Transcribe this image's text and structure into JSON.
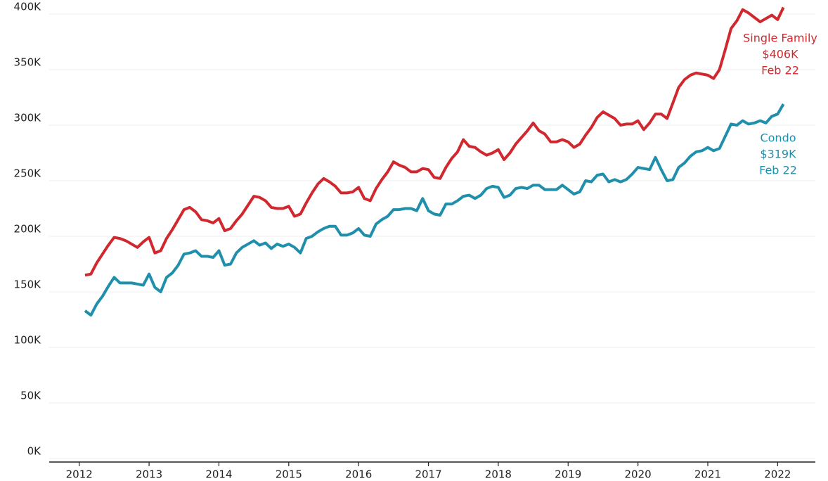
{
  "chart_data": {
    "type": "line",
    "x": [
      2012.083,
      2012.167,
      2012.25,
      2012.333,
      2012.417,
      2012.5,
      2012.583,
      2012.667,
      2012.75,
      2012.833,
      2012.917,
      2013,
      2013.083,
      2013.167,
      2013.25,
      2013.333,
      2013.417,
      2013.5,
      2013.583,
      2013.667,
      2013.75,
      2013.833,
      2013.917,
      2014,
      2014.083,
      2014.167,
      2014.25,
      2014.333,
      2014.417,
      2014.5,
      2014.583,
      2014.667,
      2014.75,
      2014.833,
      2014.917,
      2015,
      2015.083,
      2015.167,
      2015.25,
      2015.333,
      2015.417,
      2015.5,
      2015.583,
      2015.667,
      2015.75,
      2015.833,
      2015.917,
      2016,
      2016.083,
      2016.167,
      2016.25,
      2016.333,
      2016.417,
      2016.5,
      2016.583,
      2016.667,
      2016.75,
      2016.833,
      2016.917,
      2017,
      2017.083,
      2017.167,
      2017.25,
      2017.333,
      2017.417,
      2017.5,
      2017.583,
      2017.667,
      2017.75,
      2017.833,
      2017.917,
      2018,
      2018.083,
      2018.167,
      2018.25,
      2018.333,
      2018.417,
      2018.5,
      2018.583,
      2018.667,
      2018.75,
      2018.833,
      2018.917,
      2019,
      2019.083,
      2019.167,
      2019.25,
      2019.333,
      2019.417,
      2019.5,
      2019.583,
      2019.667,
      2019.75,
      2019.833,
      2019.917,
      2020,
      2020.083,
      2020.167,
      2020.25,
      2020.333,
      2020.417,
      2020.5,
      2020.583,
      2020.667,
      2020.75,
      2020.833,
      2020.917,
      2021,
      2021.083,
      2021.167,
      2021.25,
      2021.333,
      2021.417,
      2021.5,
      2021.583,
      2021.667,
      2021.75,
      2021.833,
      2021.917,
      2022,
      2022.083
    ],
    "series": [
      {
        "name": "Single Family",
        "color": "#d0282e",
        "value_label": "$406K",
        "date_label": "Feb 22",
        "values": [
          165,
          166,
          176,
          184,
          192,
          199,
          198,
          196,
          193,
          190,
          195,
          199,
          185,
          187,
          198,
          206,
          215,
          224,
          226,
          222,
          215,
          214,
          212,
          216,
          205,
          207,
          214,
          220,
          228,
          236,
          235,
          232,
          226,
          225,
          225,
          227,
          218,
          220,
          230,
          239,
          247,
          252,
          249,
          245,
          239,
          239,
          240,
          244,
          234,
          232,
          243,
          251,
          258,
          267,
          264,
          262,
          258,
          258,
          261,
          260,
          253,
          252,
          262,
          270,
          276,
          287,
          281,
          280,
          276,
          273,
          275,
          278,
          269,
          275,
          283,
          289,
          295,
          302,
          295,
          292,
          285,
          285,
          287,
          285,
          280,
          283,
          291,
          298,
          307,
          312,
          309,
          306,
          300,
          301,
          301,
          304,
          296,
          302,
          310,
          310,
          306,
          320,
          334,
          341,
          345,
          347,
          346,
          345,
          342,
          350,
          368,
          387,
          394,
          404,
          401,
          397,
          393,
          396,
          399,
          395,
          406
        ]
      },
      {
        "name": "Condo",
        "color": "#1f8fab",
        "value_label": "$319K",
        "date_label": "Feb 22",
        "values": [
          133,
          129,
          139,
          146,
          155,
          163,
          158,
          158,
          158,
          157,
          156,
          166,
          154,
          150,
          163,
          167,
          174,
          184,
          185,
          187,
          182,
          182,
          181,
          187,
          174,
          175,
          185,
          190,
          193,
          196,
          192,
          194,
          189,
          193,
          191,
          193,
          190,
          185,
          198,
          200,
          204,
          207,
          209,
          209,
          201,
          201,
          203,
          207,
          201,
          200,
          211,
          215,
          218,
          224,
          224,
          225,
          225,
          223,
          234,
          223,
          220,
          219,
          229,
          229,
          232,
          236,
          237,
          234,
          237,
          243,
          245,
          244,
          235,
          237,
          243,
          244,
          243,
          246,
          246,
          242,
          242,
          242,
          246,
          242,
          238,
          240,
          250,
          249,
          255,
          256,
          249,
          251,
          249,
          251,
          256,
          262,
          261,
          260,
          271,
          260,
          250,
          251,
          262,
          266,
          272,
          276,
          277,
          280,
          277,
          279,
          290,
          301,
          300,
          304,
          301,
          302,
          304,
          302,
          308,
          310,
          319
        ]
      }
    ],
    "xlim": [
      2011.57,
      2022.54
    ],
    "xticks": [
      2012,
      2013,
      2014,
      2015,
      2016,
      2017,
      2018,
      2019,
      2020,
      2021,
      2022
    ],
    "ylim": [
      0,
      410
    ],
    "yticks": [
      {
        "value": 0,
        "label": "0K"
      },
      {
        "value": 50,
        "label": "50K"
      },
      {
        "value": 100,
        "label": "100K"
      },
      {
        "value": 150,
        "label": "150K"
      },
      {
        "value": 200,
        "label": "200K"
      },
      {
        "value": 250,
        "label": "250K"
      },
      {
        "value": 300,
        "label": "300K"
      },
      {
        "value": 350,
        "label": "350K"
      },
      {
        "value": 400,
        "label": "400K"
      }
    ],
    "grid": true
  }
}
